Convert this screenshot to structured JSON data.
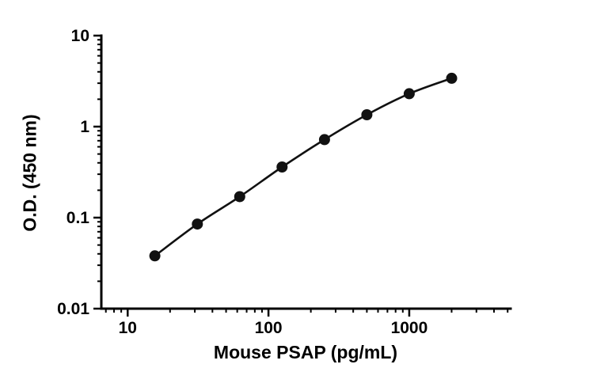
{
  "chart_data": {
    "type": "line",
    "title": "",
    "xlabel": "Mouse PSAP (pg/mL)",
    "ylabel": "O.D. (450 nm)",
    "xscale": "log",
    "yscale": "log",
    "x": [
      15.6,
      31.25,
      62.5,
      125,
      250,
      500,
      1000,
      2000
    ],
    "y": [
      0.038,
      0.085,
      0.17,
      0.36,
      0.72,
      1.35,
      2.3,
      3.4
    ],
    "xlim": [
      6.5,
      5250
    ],
    "ylim": [
      0.01,
      10
    ],
    "x_ticks": [
      10,
      100,
      1000
    ],
    "x_tick_labels": [
      "10",
      "100",
      "1000"
    ],
    "y_ticks": [
      0.01,
      0.1,
      1,
      10
    ],
    "y_tick_labels": [
      "0.01",
      "0.1",
      "1",
      "10"
    ],
    "grid": false,
    "legend": null,
    "line_color": "#111111",
    "marker_color": "#111111",
    "axis_color": "#000000",
    "background_color": "#ffffff"
  }
}
